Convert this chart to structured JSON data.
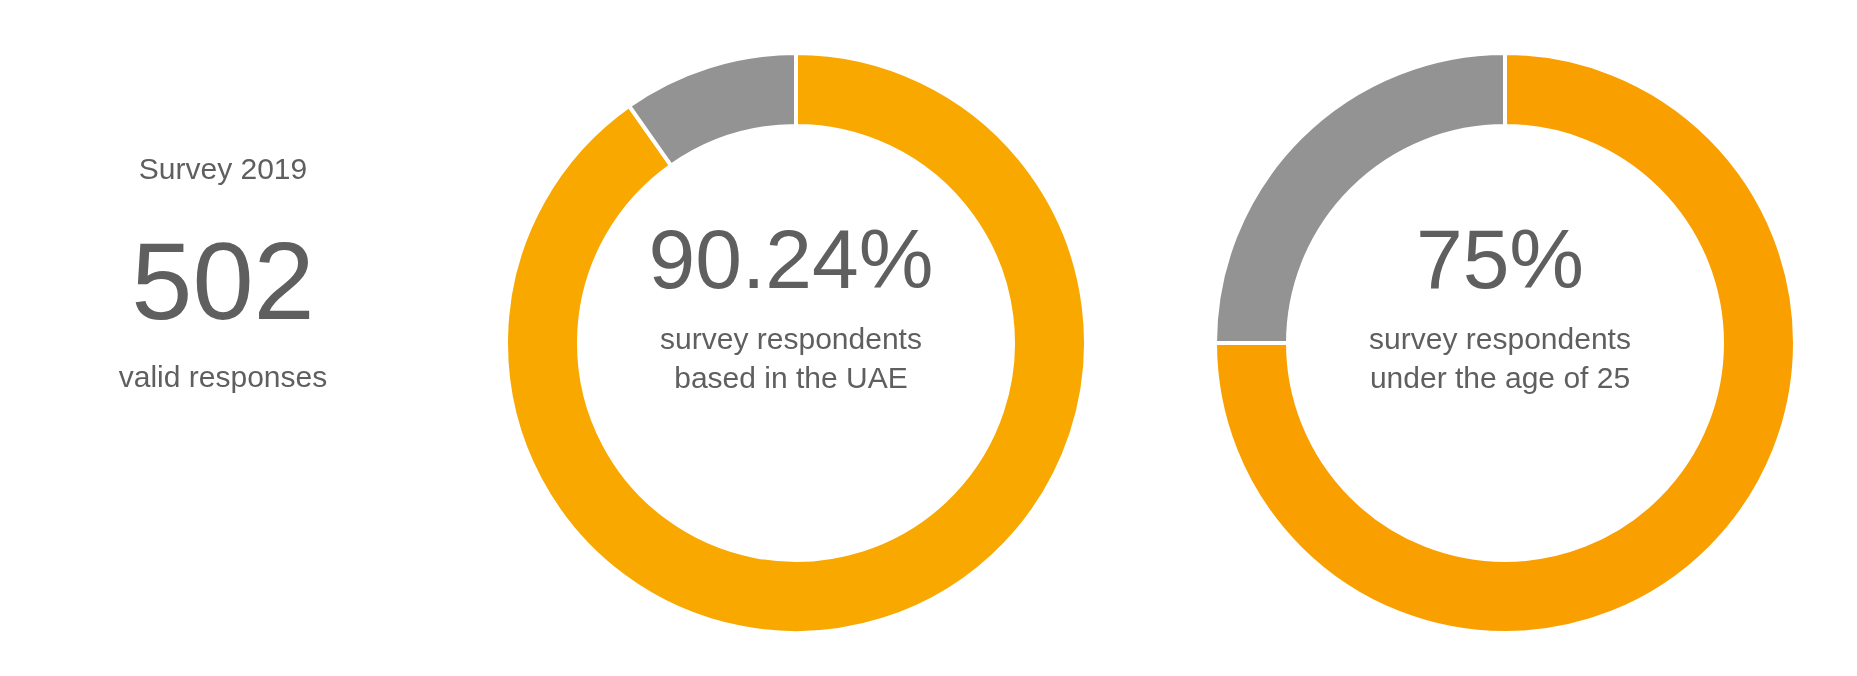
{
  "chart_data": [
    {
      "type": "other",
      "title": "Survey 2019",
      "annotations": [
        "502",
        "valid responses"
      ]
    },
    {
      "type": "donut",
      "categories": [
        null,
        null
      ],
      "values": [
        90.24,
        9.76
      ],
      "colors": [
        "#f9a800",
        "#939393"
      ],
      "value_labels": [
        "90.24%",
        null
      ],
      "annotations": [
        "survey respondents based in the UAE"
      ]
    },
    {
      "type": "donut",
      "categories": [
        null,
        null
      ],
      "values": [
        75,
        25
      ],
      "colors": [
        "#fa9f00",
        "#939393"
      ],
      "value_labels": [
        "75%",
        null
      ],
      "annotations": [
        "survey respondents under the age of 25"
      ]
    }
  ]
}
